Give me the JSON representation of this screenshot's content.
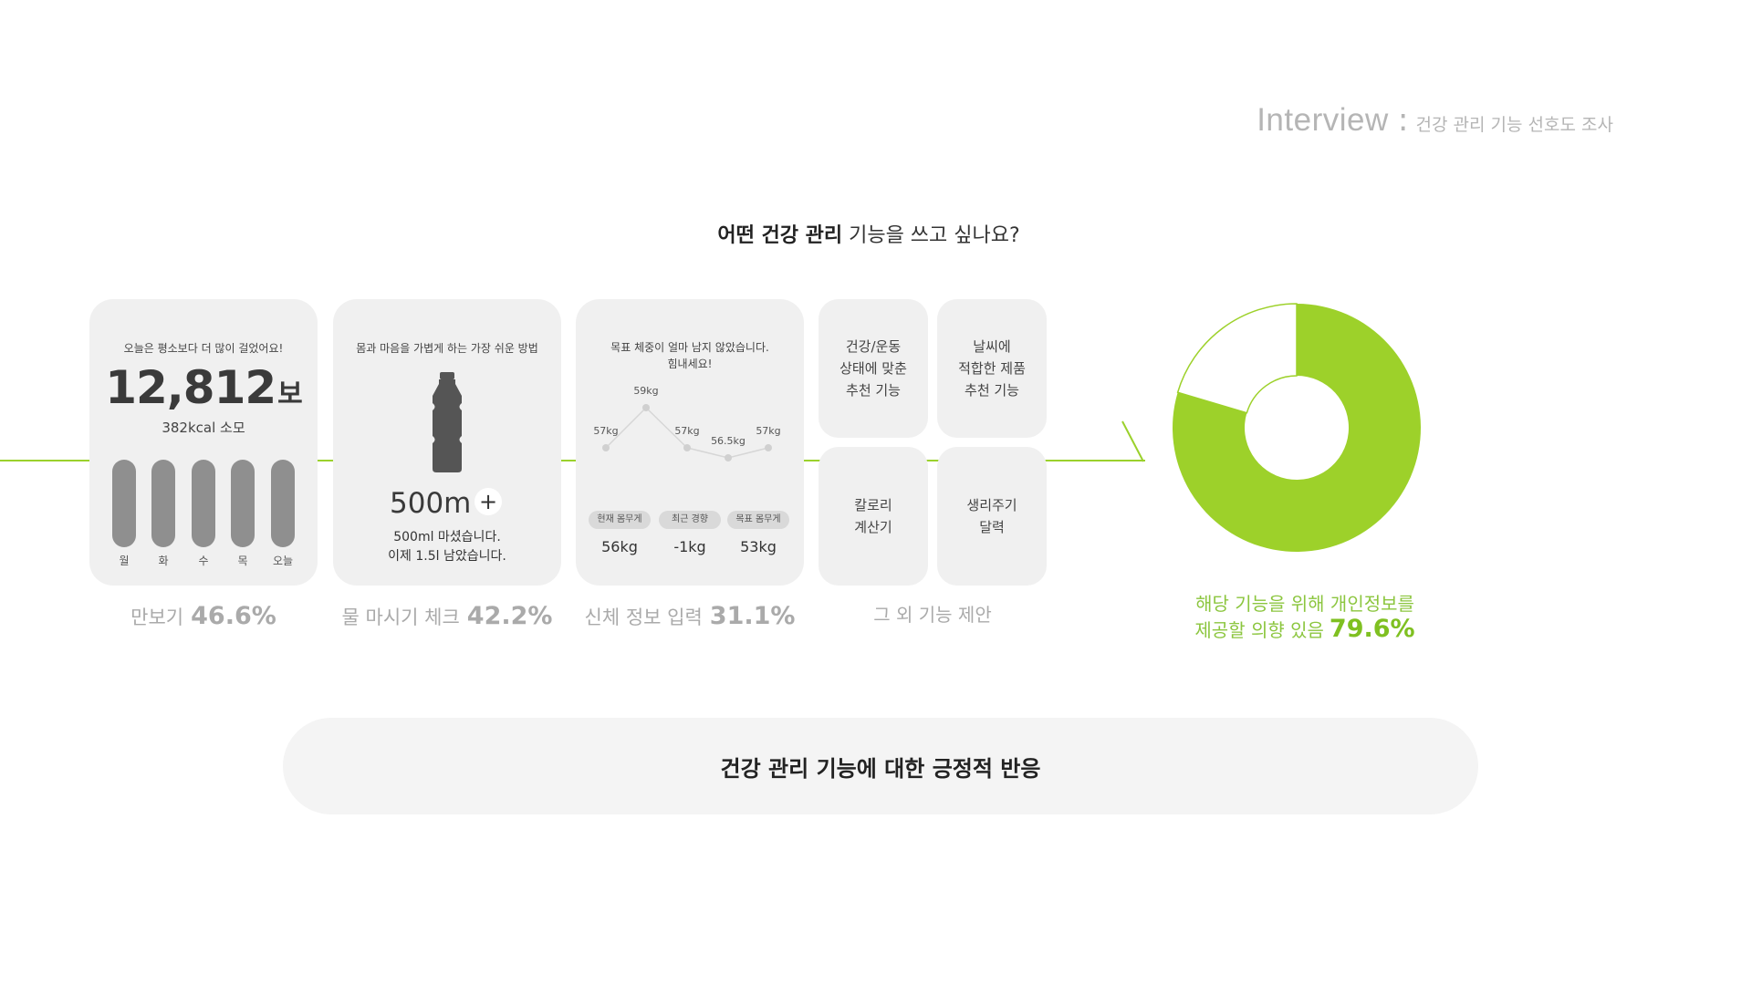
{
  "header": {
    "title_main": "Interview",
    "title_colon": ":",
    "title_sub": "건강 관리 기능 선호도 조사"
  },
  "question": {
    "bold": "어떤 건강 관리",
    "rest": " 기능을 쓰고 싶나요?"
  },
  "cards": {
    "pedometer": {
      "title": "오늘은 평소보다 더 많이 걸었어요!",
      "steps": "12,812",
      "steps_unit": "보",
      "kcal": "382kcal 소모",
      "days": [
        "월",
        "화",
        "수",
        "목",
        "오늘"
      ],
      "label": "만보기",
      "percent": "46.6%"
    },
    "water": {
      "title": "몸과 마음을 가볍게 하는 가장 쉬운 방법",
      "amount": "500m",
      "plus": "+",
      "desc_line1": "500ml 마셨습니다.",
      "desc_line2": "이제 1.5l 남았습니다.",
      "label": "물 마시기 체크",
      "percent": "42.2%"
    },
    "body": {
      "title_line1": "목표 체중이 얼마 남지 않았습니다.",
      "title_line2": "힘내세요!",
      "weight_points": [
        {
          "label": "57kg",
          "value": 57
        },
        {
          "label": "59kg",
          "value": 59
        },
        {
          "label": "57kg",
          "value": 57
        },
        {
          "label": "56.5kg",
          "value": 56.5
        },
        {
          "label": "57kg",
          "value": 57
        }
      ],
      "pills": [
        "현재 몸무게",
        "최근 경향",
        "목표 몸무게"
      ],
      "values": [
        "56kg",
        "-1kg",
        "53kg"
      ],
      "label": "신체 정보 입력",
      "percent": "31.1%"
    },
    "others": {
      "items": [
        "건강/운동\n상태에 맞춘\n추천 기능",
        "날씨에\n적합한 제품\n추천 기능",
        "칼로리\n계산기",
        "생리주기\n달력"
      ],
      "label": "그 외 기능 제안"
    }
  },
  "privacy": {
    "line1": "해당 기능을 위해 개인정보를",
    "line2": "제공할 의향 있음",
    "percent": "79.6%",
    "value": 79.6,
    "color_yes": "#9dd12a",
    "color_no": "#ffffff"
  },
  "banner": {
    "text": "건강 관리 기능에 대한 긍정적 반응"
  }
}
